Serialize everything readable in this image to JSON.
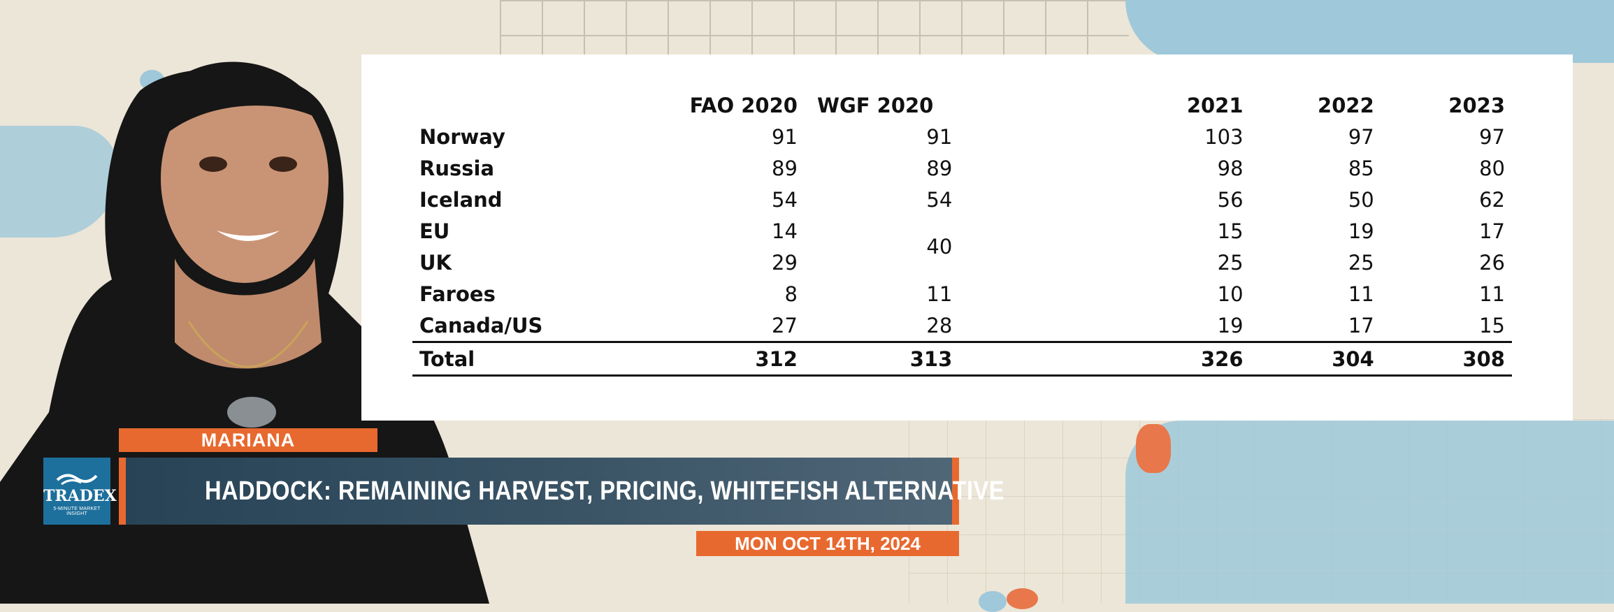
{
  "table": {
    "headers": {
      "fao": "FAO 2020",
      "wgf": "WGF 2020",
      "y2021": "2021",
      "y2022": "2022",
      "y2023": "2023"
    },
    "rows": [
      {
        "country": "Norway",
        "fao": "91",
        "wgf": "91",
        "y2021": "103",
        "y2022": "97",
        "y2023": "97"
      },
      {
        "country": "Russia",
        "fao": "89",
        "wgf": "89",
        "y2021": "98",
        "y2022": "85",
        "y2023": "80"
      },
      {
        "country": "Iceland",
        "fao": "54",
        "wgf": "54",
        "y2021": "56",
        "y2022": "50",
        "y2023": "62"
      },
      {
        "country": "EU",
        "fao": "14",
        "wgf": "40",
        "y2021": "15",
        "y2022": "19",
        "y2023": "17"
      },
      {
        "country": "UK",
        "fao": "29",
        "y2021": "25",
        "y2022": "25",
        "y2023": "26"
      },
      {
        "country": "Faroes",
        "fao": "8",
        "wgf": "11",
        "y2021": "10",
        "y2022": "11",
        "y2023": "11"
      },
      {
        "country": "Canada/US",
        "fao": "27",
        "wgf": "28",
        "y2021": "19",
        "y2022": "17",
        "y2023": "15"
      }
    ],
    "total": {
      "country": "Total",
      "fao": "312",
      "wgf": "313",
      "y2021": "326",
      "y2022": "304",
      "y2023": "308"
    }
  },
  "lower_third": {
    "presenter_name": "MARIANA",
    "logo_text": "TRADEX",
    "logo_subtitle": "5-MINUTE MARKET INSIGHT",
    "headline": "HADDOCK: REMAINING HARVEST, PRICING, WHITEFISH ALTERNATIVE",
    "date": "MON OCT 14TH, 2024"
  },
  "colors": {
    "accent": "#e8692f",
    "headline_bg": "#2f4a5c",
    "logo_bg": "#1d6f9c",
    "map_water": "#9fc8da",
    "map_land": "#ece6d8"
  }
}
